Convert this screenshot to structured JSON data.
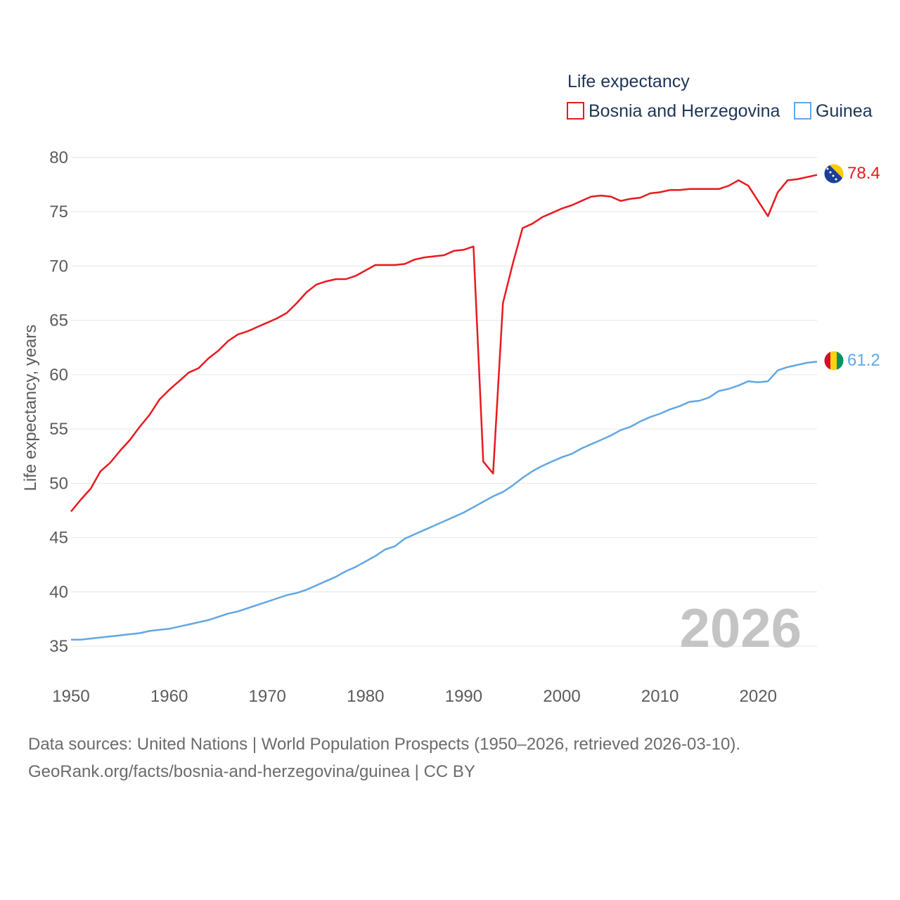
{
  "chart_data": {
    "type": "line",
    "legend_title": "Life expectancy",
    "ylabel": "Life expectancy, years",
    "xlim": [
      1950,
      2026
    ],
    "ylim": [
      32,
      81
    ],
    "yticks": [
      35,
      40,
      45,
      50,
      55,
      60,
      65,
      70,
      75,
      80
    ],
    "xticks": [
      1950,
      1960,
      1970,
      1980,
      1990,
      2000,
      2010,
      2020
    ],
    "year_label": "2026",
    "grid": true,
    "legend_position": "top-right",
    "series": [
      {
        "name": "Bosnia and Herzegovina",
        "color": "#e8191f",
        "end_label": "78.4",
        "flag_icon": "bosnia-flag-icon",
        "x": [
          1950,
          1951,
          1952,
          1953,
          1954,
          1955,
          1956,
          1957,
          1958,
          1959,
          1960,
          1961,
          1962,
          1963,
          1964,
          1965,
          1966,
          1967,
          1968,
          1969,
          1970,
          1971,
          1972,
          1973,
          1974,
          1975,
          1976,
          1977,
          1978,
          1979,
          1980,
          1981,
          1982,
          1983,
          1984,
          1985,
          1986,
          1987,
          1988,
          1989,
          1990,
          1991,
          1992,
          1993,
          1994,
          1995,
          1996,
          1997,
          1998,
          1999,
          2000,
          2001,
          2002,
          2003,
          2004,
          2005,
          2006,
          2007,
          2008,
          2009,
          2010,
          2011,
          2012,
          2013,
          2014,
          2015,
          2016,
          2017,
          2018,
          2019,
          2020,
          2021,
          2022,
          2023,
          2024,
          2025,
          2026
        ],
        "values": [
          47.4,
          48.5,
          49.5,
          51.1,
          51.9,
          53.0,
          54.0,
          55.2,
          56.3,
          57.7,
          58.6,
          59.4,
          60.2,
          60.6,
          61.5,
          62.2,
          63.1,
          63.7,
          64.0,
          64.4,
          64.8,
          65.2,
          65.7,
          66.6,
          67.6,
          68.3,
          68.6,
          68.8,
          68.8,
          69.1,
          69.6,
          70.1,
          70.1,
          70.1,
          70.2,
          70.6,
          70.8,
          70.9,
          71.0,
          71.4,
          71.5,
          71.8,
          52.0,
          50.9,
          66.6,
          70.2,
          73.5,
          73.9,
          74.5,
          74.9,
          75.3,
          75.6,
          76.0,
          76.4,
          76.5,
          76.4,
          76.0,
          76.2,
          76.3,
          76.7,
          76.8,
          77.0,
          77.0,
          77.1,
          77.1,
          77.1,
          77.1,
          77.4,
          77.9,
          77.4,
          76.0,
          74.6,
          76.8,
          77.9,
          78.0,
          78.2,
          78.4
        ]
      },
      {
        "name": "Guinea",
        "color": "#62a7e2",
        "end_label": "61.2",
        "flag_icon": "guinea-flag-icon",
        "x": [
          1950,
          1951,
          1952,
          1953,
          1954,
          1955,
          1956,
          1957,
          1958,
          1959,
          1960,
          1961,
          1962,
          1963,
          1964,
          1965,
          1966,
          1967,
          1968,
          1969,
          1970,
          1971,
          1972,
          1973,
          1974,
          1975,
          1976,
          1977,
          1978,
          1979,
          1980,
          1981,
          1982,
          1983,
          1984,
          1985,
          1986,
          1987,
          1988,
          1989,
          1990,
          1991,
          1992,
          1993,
          1994,
          1995,
          1996,
          1997,
          1998,
          1999,
          2000,
          2001,
          2002,
          2003,
          2004,
          2005,
          2006,
          2007,
          2008,
          2009,
          2010,
          2011,
          2012,
          2013,
          2014,
          2015,
          2016,
          2017,
          2018,
          2019,
          2020,
          2021,
          2022,
          2023,
          2024,
          2025,
          2026
        ],
        "values": [
          35.6,
          35.6,
          35.7,
          35.8,
          35.9,
          36.0,
          36.1,
          36.2,
          36.4,
          36.5,
          36.6,
          36.8,
          37.0,
          37.2,
          37.4,
          37.7,
          38.0,
          38.2,
          38.5,
          38.8,
          39.1,
          39.4,
          39.7,
          39.9,
          40.2,
          40.6,
          41.0,
          41.4,
          41.9,
          42.3,
          42.8,
          43.3,
          43.9,
          44.2,
          44.9,
          45.3,
          45.7,
          46.1,
          46.5,
          46.9,
          47.3,
          47.8,
          48.3,
          48.8,
          49.2,
          49.8,
          50.5,
          51.1,
          51.6,
          52.0,
          52.4,
          52.7,
          53.2,
          53.6,
          54.0,
          54.4,
          54.9,
          55.2,
          55.7,
          56.1,
          56.4,
          56.8,
          57.1,
          57.5,
          57.6,
          57.9,
          58.5,
          58.7,
          59.0,
          59.4,
          59.3,
          59.4,
          60.4,
          60.7,
          60.9,
          61.1,
          61.2
        ]
      }
    ]
  },
  "footer": {
    "line1": "Data sources: United Nations | World Population Prospects (1950–2026, retrieved 2026-03-10).",
    "line2": "GeoRank.org/facts/bosnia-and-herzegovina/guinea | CC BY"
  }
}
